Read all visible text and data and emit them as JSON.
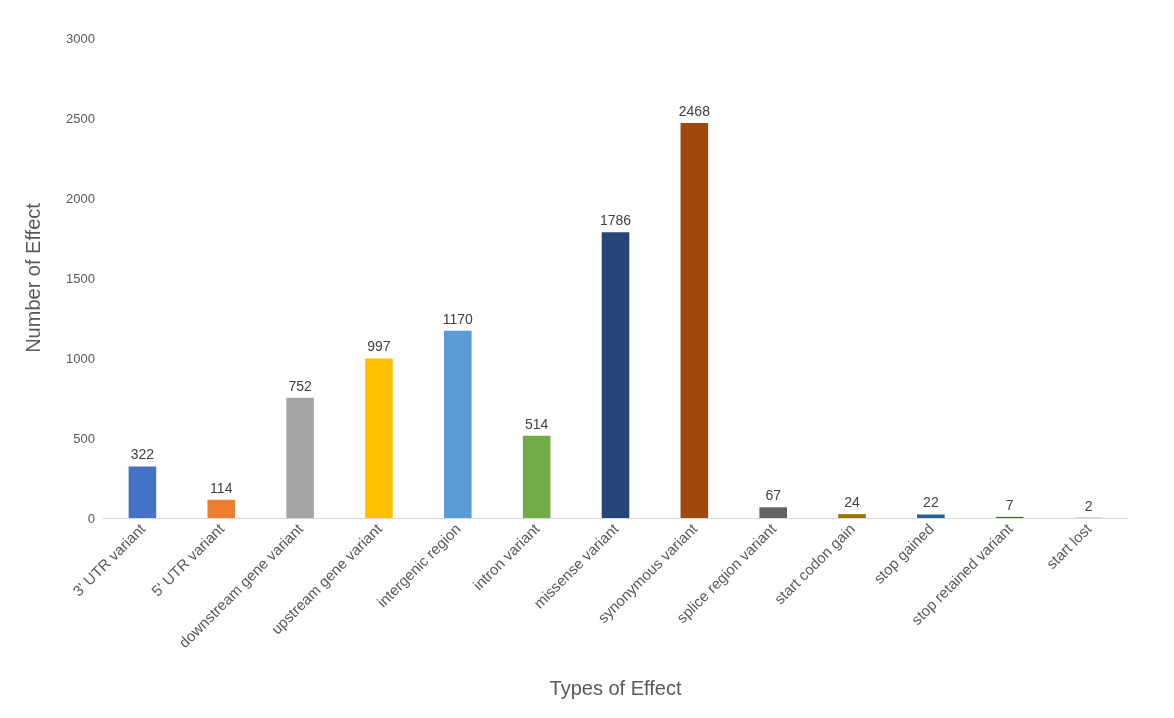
{
  "chart_data": {
    "type": "bar",
    "xlabel": "Types of Effect",
    "ylabel": "Number of Effect",
    "categories": [
      "3' UTR variant",
      "5' UTR variant",
      "downstream gene variant",
      "upstream gene variant",
      "intergenic region",
      "intron variant",
      "missense variant",
      "synonymous variant",
      "splice region variant",
      "start codon gain",
      "stop gained",
      "stop retained variant",
      "start lost"
    ],
    "values": [
      322,
      114,
      752,
      997,
      1170,
      514,
      1786,
      2468,
      67,
      24,
      22,
      7,
      2
    ],
    "colors": [
      "#4472c4",
      "#ed7d31",
      "#a5a5a5",
      "#ffc000",
      "#5b9bd5",
      "#70ad47",
      "#264478",
      "#9e480e",
      "#636363",
      "#997300",
      "#255e91",
      "#43682b",
      "#698ed0"
    ],
    "ylim": [
      0,
      3000
    ],
    "yticks": [
      0,
      500,
      1000,
      1500,
      2000,
      2500,
      3000
    ],
    "grid": false,
    "data_labels": true
  }
}
